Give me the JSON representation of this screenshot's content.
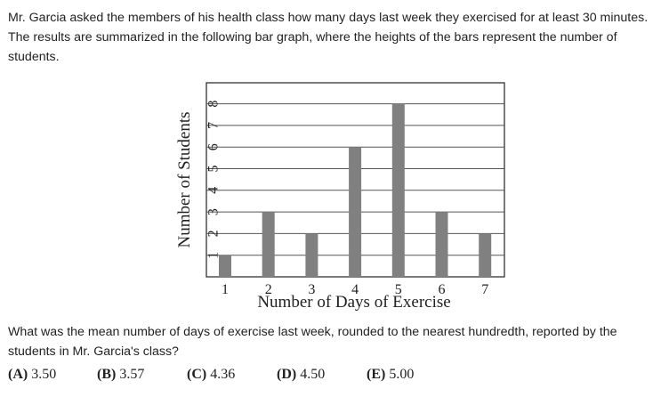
{
  "question": {
    "intro": "Mr. Garcia asked the members of his health class how many days last week they exercised for at least 30 minutes. The results are summarized in the following bar graph, where the heights of the bars represent the number of students.",
    "ask": "What was the mean number of days of exercise last week, rounded to the nearest hundredth, reported by the students in Mr. Garcia's class?"
  },
  "choices": [
    {
      "letter": "(A)",
      "value": "3.50"
    },
    {
      "letter": "(B)",
      "value": "3.57"
    },
    {
      "letter": "(C)",
      "value": "4.36"
    },
    {
      "letter": "(D)",
      "value": "4.50"
    },
    {
      "letter": "(E)",
      "value": "5.00"
    }
  ],
  "colors": {
    "bar": "#808080",
    "grid": "#555555",
    "frame": "#333333",
    "text": "#222222"
  },
  "chart_data": {
    "type": "bar",
    "categories": [
      "1",
      "2",
      "3",
      "4",
      "5",
      "6",
      "7"
    ],
    "values": [
      1,
      3,
      2,
      6,
      8,
      3,
      2
    ],
    "title": "",
    "xlabel": "Number of Days of Exercise",
    "ylabel": "Number of Students",
    "ylim": [
      0,
      8
    ],
    "yticks": [
      "1",
      "2",
      "3",
      "4",
      "5",
      "6",
      "7",
      "8"
    ],
    "grid": true
  }
}
